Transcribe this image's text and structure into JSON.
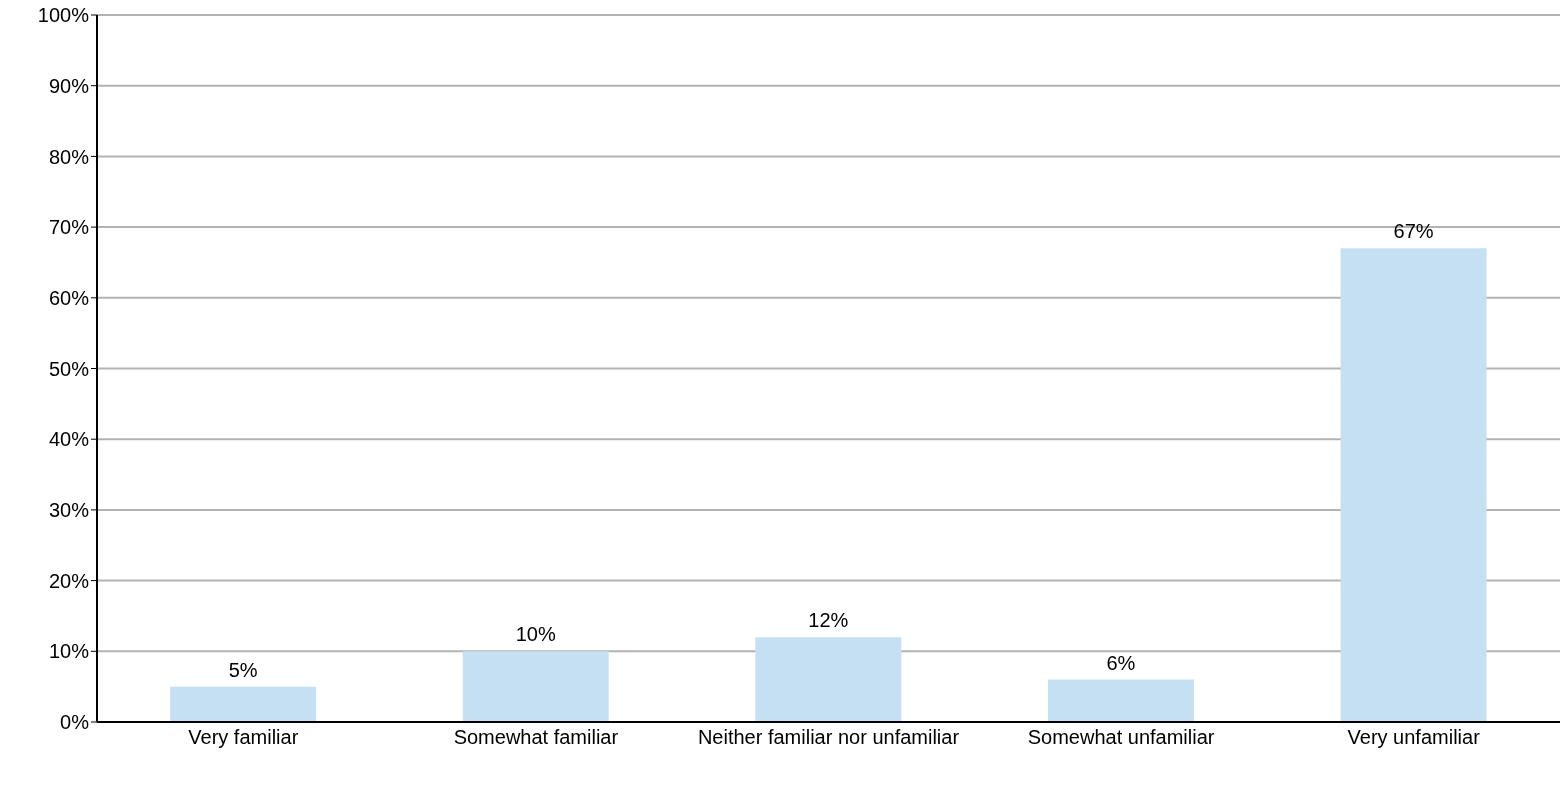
{
  "chart_data": {
    "type": "bar",
    "categories": [
      "Very familiar",
      "Somewhat familiar",
      "Neither familiar nor unfamiliar",
      "Somewhat unfamiliar",
      "Very unfamiliar"
    ],
    "values": [
      5,
      10,
      12,
      6,
      67
    ],
    "value_labels": [
      "5%",
      "10%",
      "12%",
      "6%",
      "67%"
    ],
    "color": "#c5dff3",
    "ylim": [
      0,
      100
    ],
    "yticks": [
      {
        "value": 0,
        "label": "0%"
      },
      {
        "value": 10,
        "label": "10%"
      },
      {
        "value": 20,
        "label": "20%"
      },
      {
        "value": 30,
        "label": "30%"
      },
      {
        "value": 40,
        "label": "40%"
      },
      {
        "value": 50,
        "label": "50%"
      },
      {
        "value": 60,
        "label": "60%"
      },
      {
        "value": 70,
        "label": "70%"
      },
      {
        "value": 80,
        "label": "80%"
      },
      {
        "value": 90,
        "label": "90%"
      },
      {
        "value": 100,
        "label": "100%"
      }
    ],
    "grid": "y"
  }
}
